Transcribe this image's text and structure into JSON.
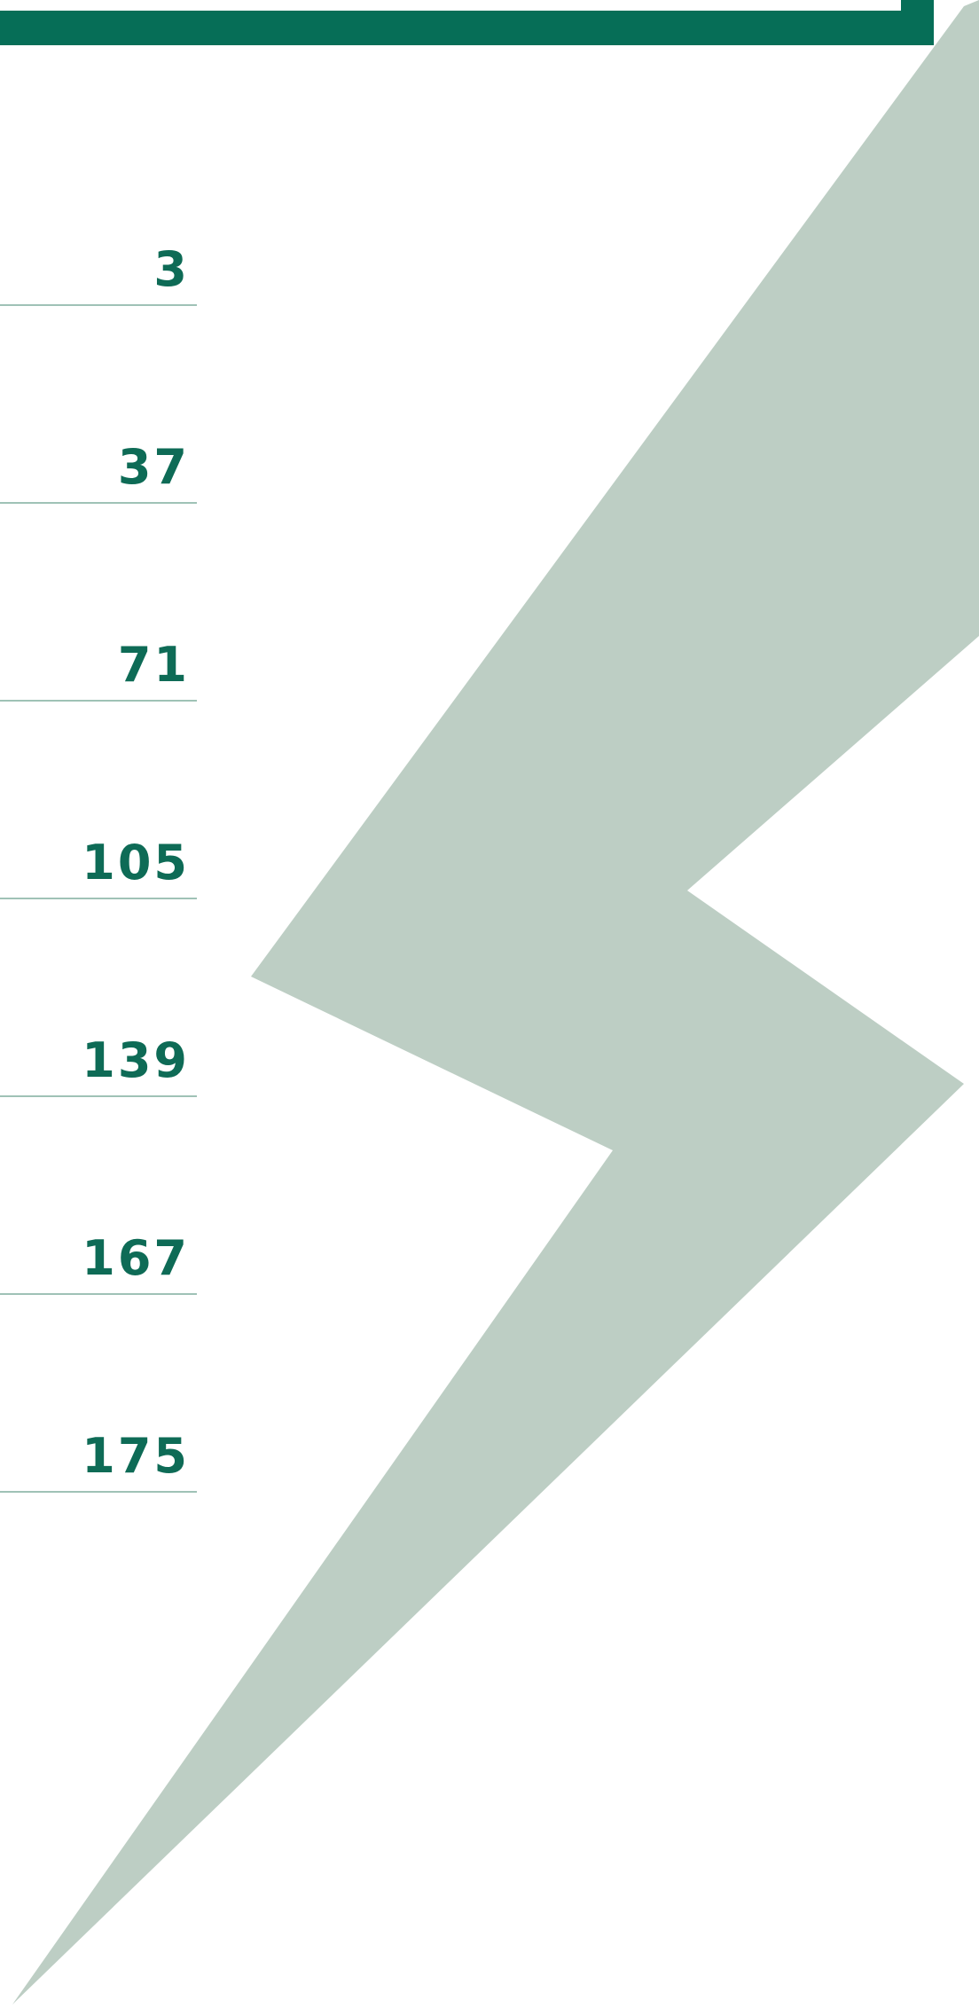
{
  "toc": {
    "page_numbers": [
      "3",
      "37",
      "71",
      "105",
      "139",
      "167",
      "175"
    ]
  }
}
